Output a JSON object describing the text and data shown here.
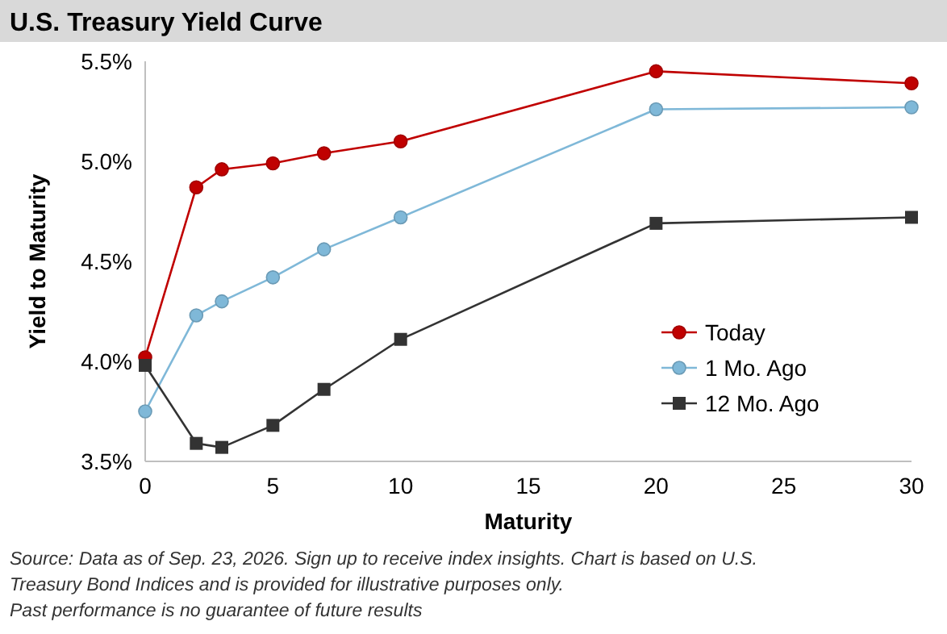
{
  "chart_data": {
    "type": "line",
    "title": "U.S. Treasury Yield Curve",
    "xlabel": "Maturity",
    "ylabel": "Yield to Maturity",
    "x": [
      0,
      2,
      3,
      5,
      7,
      10,
      20,
      30
    ],
    "series": [
      {
        "name": "Today",
        "color": "#c00000",
        "marker": "circle",
        "values": [
          4.02,
          4.87,
          4.96,
          4.99,
          5.04,
          5.1,
          5.45,
          5.39
        ]
      },
      {
        "name": "1 Mo. Ago",
        "color": "#7fb8d8",
        "marker": "circle",
        "values": [
          3.75,
          4.23,
          4.3,
          4.42,
          4.56,
          4.72,
          5.26,
          5.27
        ]
      },
      {
        "name": "12 Mo. Ago",
        "color": "#333333",
        "marker": "square",
        "values": [
          3.98,
          3.59,
          3.57,
          3.68,
          3.86,
          4.11,
          4.69,
          4.72
        ]
      }
    ],
    "xlim": [
      0,
      30
    ],
    "xticks": [
      0,
      5,
      10,
      15,
      20,
      25,
      30
    ],
    "ylim": [
      3.5,
      5.5
    ],
    "yticks": [
      {
        "value": 3.5,
        "label": "3.5%"
      },
      {
        "value": 4.0,
        "label": "4.0%"
      },
      {
        "value": 4.5,
        "label": "4.5%"
      },
      {
        "value": 5.0,
        "label": "5.0%"
      },
      {
        "value": 5.5,
        "label": "5.5%"
      }
    ],
    "grid": false,
    "legend": "bottom right",
    "line_style": "solid",
    "annotations": [
      "Source: Data as of Sep. 23, 2026. Sign up to receive index insights.  Chart is based on U.S. Treasury Bond Indices and is provided for illustrative purposes only.",
      "Past performance is no guarantee of future results"
    ]
  }
}
